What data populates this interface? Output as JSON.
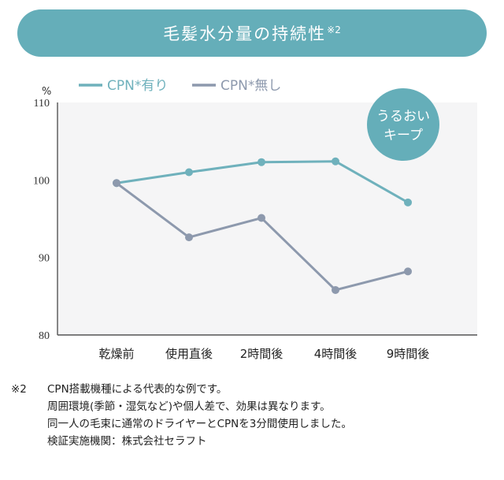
{
  "title": {
    "text": "毛髪水分量の持続性",
    "sup": "※2"
  },
  "colors": {
    "banner": "#65aeb9",
    "cpn_with": "#6fb1bc",
    "cpn_without": "#8d99ad",
    "badge": "#65aeb9",
    "plot_bg": "#f5f5f6",
    "axis": "#555555"
  },
  "badge": {
    "line1": "うるおい",
    "line2": "キープ"
  },
  "chart_data": {
    "type": "line",
    "ylabel": "%",
    "ylim": [
      80,
      110
    ],
    "yticks": [
      "110",
      "100",
      "90",
      "80"
    ],
    "yticks_values": [
      110,
      100,
      90,
      80
    ],
    "categories": [
      "乾燥前",
      "使用直後",
      "2時間後",
      "4時間後",
      "9時間後"
    ],
    "legend_position": "top-left",
    "grid": false,
    "series": [
      {
        "name": "CPN*有り",
        "color": "#6fb1bc",
        "values": [
          99.6,
          101.0,
          102.3,
          102.4,
          97.1
        ]
      },
      {
        "name": "CPN*無し",
        "color": "#8d99ad",
        "values": [
          99.6,
          92.6,
          95.1,
          85.8,
          88.2
        ]
      }
    ]
  },
  "notes": {
    "mark": "※2",
    "line1": "CPN搭載機種による代表的な例です。",
    "line2": "周囲環境(季節・湿気など)や個人差で、効果は異なります。",
    "line3": "同一人の毛束に通常のドライヤーとCPNを3分間使用しました。",
    "line4": "検証実施機関：株式会社セラフト"
  }
}
